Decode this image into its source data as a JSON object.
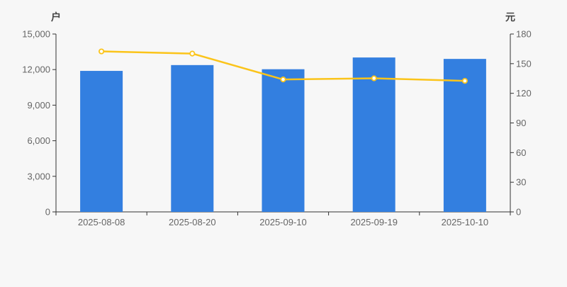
{
  "colors": {
    "background": "#f7f7f7",
    "bar": "#337fe0",
    "line": "#fbc41a",
    "marker_fill": "#ffffff",
    "axis_line": "#333333",
    "tick_text": "#666666",
    "unit_text": "#444444"
  },
  "chart_data": {
    "type": "bar+line",
    "categories": [
      "2025-08-08",
      "2025-08-20",
      "2025-09-10",
      "2025-09-19",
      "2025-10-10"
    ],
    "series": [
      {
        "name": "户",
        "type": "bar",
        "axis": "left",
        "color": "#337fe0",
        "values": [
          11890,
          12380,
          12030,
          13020,
          12900
        ]
      },
      {
        "name": "元",
        "type": "line",
        "axis": "right",
        "color": "#fbc41a",
        "values": [
          162.4,
          160.2,
          134.0,
          135.2,
          132.6
        ]
      }
    ],
    "left_axis": {
      "unit": "户",
      "min": 0,
      "max": 15000,
      "ticks": [
        0,
        3000,
        6000,
        9000,
        12000,
        15000
      ],
      "tick_labels": [
        "0",
        "3,000",
        "6,000",
        "9,000",
        "12,000",
        "15,000"
      ]
    },
    "right_axis": {
      "unit": "元",
      "min": 0,
      "max": 180,
      "ticks": [
        0,
        30,
        60,
        90,
        120,
        150,
        180
      ],
      "tick_labels": [
        "0",
        "30",
        "60",
        "90",
        "120",
        "150",
        "180"
      ]
    },
    "grid": false,
    "legend": "none"
  }
}
